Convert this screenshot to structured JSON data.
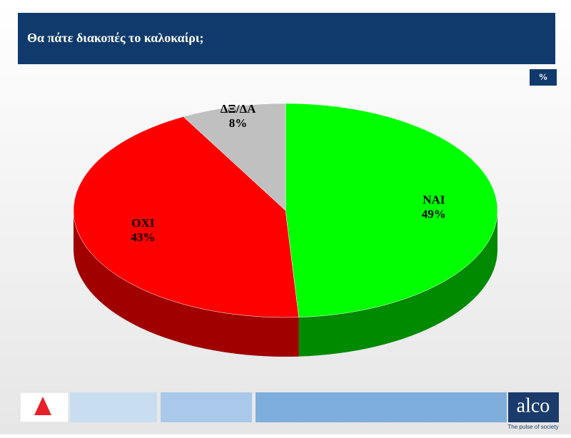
{
  "header": {
    "title": "Θα πάτε διακοπές το καλοκαίρι;",
    "unit": "%"
  },
  "chart_data": {
    "type": "pie",
    "categories": [
      "ΝΑΙ",
      "ΟΧΙ",
      "ΔΞ/ΔΑ"
    ],
    "values": [
      49,
      43,
      8
    ],
    "value_labels": [
      "49%",
      "43%",
      "8%"
    ],
    "colors": [
      "#00ff00",
      "#ff0000",
      "#c0c0c0"
    ],
    "side_colors": [
      "#008a00",
      "#a00000",
      "#8c8c8c"
    ]
  },
  "footer": {
    "brand": "alco",
    "tagline": "The pulse of society"
  }
}
